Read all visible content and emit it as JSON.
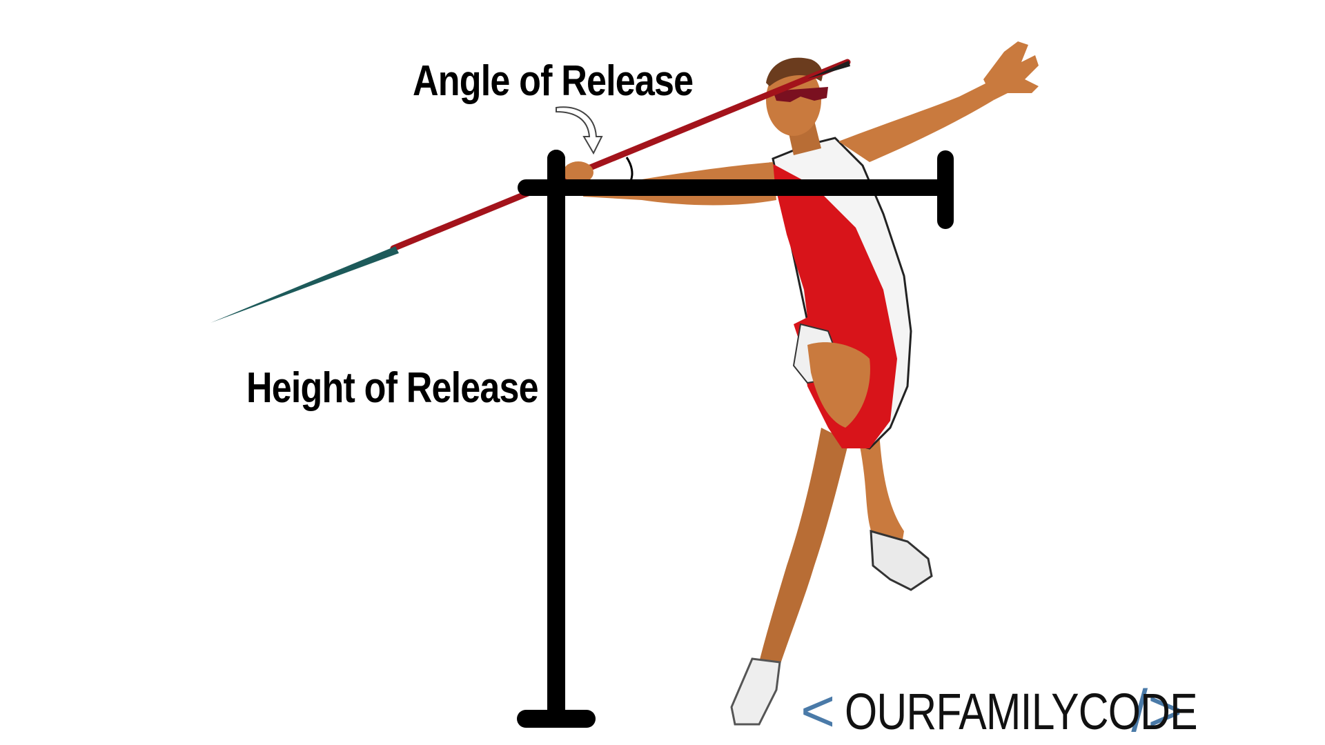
{
  "labels": {
    "angle_of_release": "Angle of Release",
    "height_of_release": "Height of Release"
  },
  "logo": {
    "text": "OURFAMILYCODE",
    "left_bracket": "<",
    "right_bracket": "/>",
    "accent_color": "#4a7aa8"
  },
  "colors": {
    "background": "#ffffff",
    "annotation_lines": "#000000",
    "javelin_shaft": "#a3131b",
    "javelin_tip": "#1d5a5a",
    "singlet_red": "#d8141a",
    "singlet_white": "#f4f4f4",
    "skin": "#c97a3e"
  },
  "icons": {
    "angle_pointer": "curved-arrow-down-icon",
    "angle_arc": "angle-arc-icon"
  }
}
